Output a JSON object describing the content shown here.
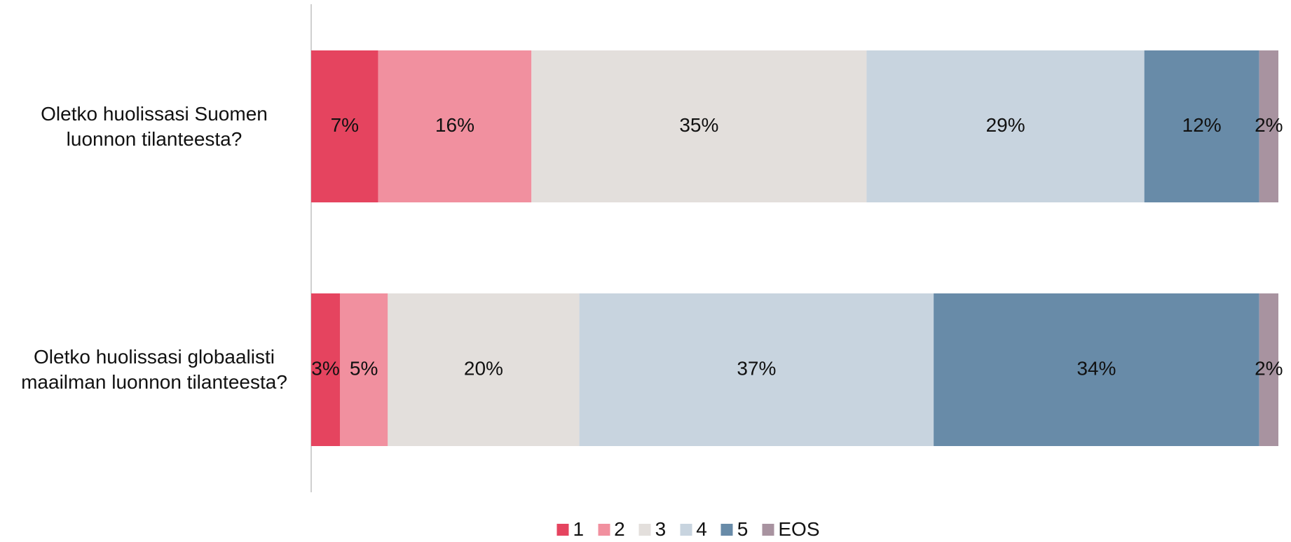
{
  "chart_data": {
    "type": "stacked_barh",
    "categories": [
      "Oletko huolissasi Suomen luonnon tilanteesta?",
      "Oletko huolissasi globaalisti maailman luonnon tilanteesta?"
    ],
    "series": [
      {
        "name": "1",
        "color": "#e5445f",
        "values": [
          7,
          3
        ],
        "value_labels": [
          "7%",
          "3%"
        ]
      },
      {
        "name": "2",
        "color": "#f1909f",
        "values": [
          16,
          5
        ],
        "value_labels": [
          "16%",
          "5%"
        ]
      },
      {
        "name": "3",
        "color": "#e3dfdc",
        "values": [
          35,
          20
        ],
        "value_labels": [
          "35%",
          "20%"
        ]
      },
      {
        "name": "4",
        "color": "#c8d4df",
        "values": [
          29,
          37
        ],
        "value_labels": [
          "29%",
          "37%"
        ]
      },
      {
        "name": "5",
        "color": "#688ba8",
        "values": [
          12,
          34
        ],
        "value_labels": [
          "12%",
          "34%"
        ]
      },
      {
        "name": "EOS",
        "color": "#a893a0",
        "values": [
          2,
          2
        ],
        "value_labels": [
          "2%",
          "2%"
        ]
      }
    ],
    "legend": "bottom"
  }
}
